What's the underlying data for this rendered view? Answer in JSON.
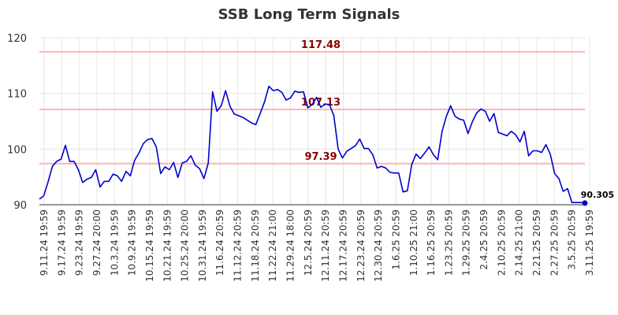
{
  "title": "SSB Long Term Signals",
  "colors": {
    "line": "#0000cc",
    "level_line": "#ffb3b3",
    "level_label": "#8b0000",
    "grid": "#e6e6e6",
    "text": "#333333"
  },
  "chart_data": {
    "type": "line",
    "title": "SSB Long Term Signals",
    "xlabel": "",
    "ylabel": "",
    "ylim": [
      90,
      120
    ],
    "yticks": [
      90,
      100,
      110,
      120
    ],
    "grid": true,
    "x_tick_labels": [
      "9.11.24 19:59",
      "9.17.24 19:59",
      "9.23.24 19:59",
      "9.27.24 20:00",
      "10.3.24 19:59",
      "10.9.24 19:59",
      "10.15.24 19:59",
      "10.21.24 19:59",
      "10.25.24 20:00",
      "10.31.24 19:59",
      "11.6.24 20:59",
      "11.12.24 20:59",
      "11.18.24 20:59",
      "11.22.24 21:00",
      "11.29.24 18:00",
      "12.5.24 20:59",
      "12.11.24 20:59",
      "12.17.24 20:59",
      "12.23.24 20:59",
      "12.30.24 20:59",
      "1.6.25 20:59",
      "1.10.25 21:00",
      "1.16.25 20:59",
      "1.23.25 20:59",
      "1.29.25 20:59",
      "2.4.25 20:59",
      "2.10.25 20:59",
      "2.14.25 21:00",
      "2.21.25 20:59",
      "2.27.25 20:59",
      "3.5.25 20:59",
      "3.11.25 19:59"
    ],
    "levels": [
      {
        "value": 117.48,
        "label": "117.48"
      },
      {
        "value": 107.13,
        "label": "107.13"
      },
      {
        "value": 97.39,
        "label": "97.39"
      }
    ],
    "last_value_label": "90.305",
    "series": [
      {
        "values": [
          91.0,
          91.6,
          94.1,
          96.9,
          97.8,
          98.2,
          100.7,
          97.8,
          97.8,
          96.3,
          94.0,
          94.6,
          94.9,
          96.3,
          93.2,
          94.2,
          94.2,
          95.5,
          95.2,
          94.2,
          96.0,
          95.2,
          98.0,
          99.3,
          101.0,
          101.7,
          101.9,
          100.4,
          95.6,
          96.8,
          96.3,
          97.6,
          94.9,
          97.5,
          97.8,
          98.8,
          97.1,
          96.5,
          94.7,
          97.5,
          110.3,
          106.8,
          107.8,
          110.5,
          107.7,
          106.3,
          106.0,
          105.7,
          105.2,
          104.7,
          104.4,
          106.4,
          108.5,
          111.3,
          110.5,
          110.7,
          110.2,
          108.8,
          109.2,
          110.4,
          110.2,
          110.3,
          107.4,
          108.0,
          109.3,
          107.5,
          108.1,
          108.0,
          106.0,
          100.0,
          98.4,
          99.6,
          100.1,
          100.6,
          101.8,
          100.1,
          100.1,
          99.0,
          96.6,
          96.9,
          96.6,
          95.8,
          95.7,
          95.7,
          92.3,
          92.5,
          97.2,
          99.1,
          98.3,
          99.3,
          100.4,
          99.0,
          98.1,
          103.2,
          105.9,
          107.8,
          105.9,
          105.4,
          105.2,
          102.8,
          104.9,
          106.5,
          107.2,
          106.8,
          105.0,
          106.4,
          103.0,
          102.7,
          102.4,
          103.2,
          102.6,
          101.3,
          103.2,
          98.8,
          99.7,
          99.7,
          99.4,
          100.8,
          99.1,
          95.6,
          94.7,
          92.4,
          92.9,
          90.4,
          90.4,
          90.4,
          90.305
        ]
      }
    ]
  }
}
